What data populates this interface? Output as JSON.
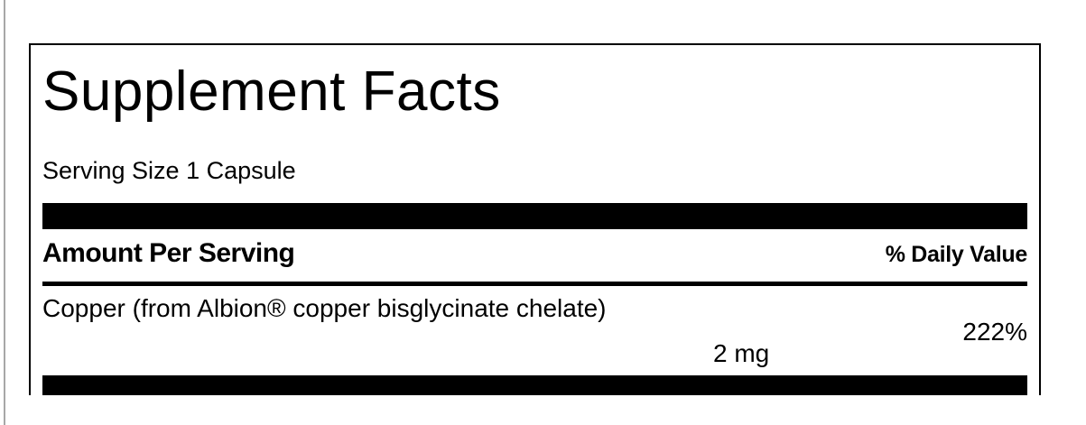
{
  "label": {
    "title": "Supplement Facts",
    "serving_size": "Serving Size 1 Capsule",
    "amount_per_serving": "Amount Per Serving",
    "daily_value_header": "% Daily Value",
    "rows": [
      {
        "nutrient": "Copper (from Albion® copper bisglycinate chelate)",
        "amount": "2 mg",
        "daily_value": "222%"
      }
    ]
  }
}
